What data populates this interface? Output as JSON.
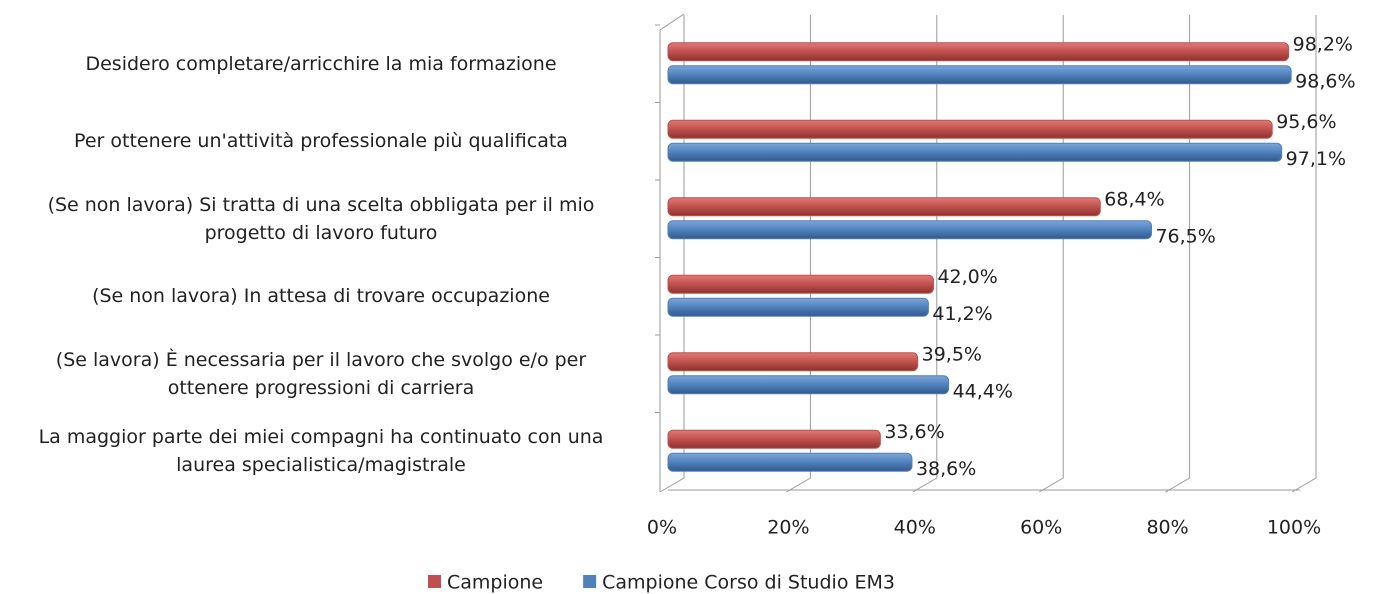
{
  "chart_data": {
    "type": "bar",
    "orientation": "horizontal",
    "categories": [
      "Desidero completare/arricchire la mia formazione",
      "Per ottenere un'attività professionale più qualificata",
      "(Se non lavora) Si tratta di una scelta obbligata per il mio\nprogetto di lavoro futuro",
      "(Se non lavora) In attesa di trovare occupazione",
      "(Se lavora) È necessaria per il lavoro che svolgo e/o per\nottenere progressioni di carriera",
      "La maggior parte dei miei compagni ha continuato con una\nlaurea specialistica/magistrale"
    ],
    "series": [
      {
        "name": "Campione",
        "color": "#c0504d",
        "values": [
          98.2,
          95.6,
          68.4,
          42.0,
          39.5,
          33.6
        ],
        "value_labels": [
          "98,2%",
          "95,6%",
          "68,4%",
          "42,0%",
          "39,5%",
          "33,6%"
        ]
      },
      {
        "name": "Campione Corso di Studio EM3",
        "color": "#4f81bd",
        "values": [
          98.6,
          97.1,
          76.5,
          41.2,
          44.4,
          38.6
        ],
        "value_labels": [
          "98,6%",
          "97,1%",
          "76,5%",
          "41,2%",
          "44,4%",
          "38,6%"
        ]
      }
    ],
    "xlim": [
      0,
      100
    ],
    "xticks": [
      {
        "value": 0,
        "label": "0%"
      },
      {
        "value": 20,
        "label": "20%"
      },
      {
        "value": 40,
        "label": "40%"
      },
      {
        "value": 60,
        "label": "60%"
      },
      {
        "value": 80,
        "label": "80%"
      },
      {
        "value": 100,
        "label": "100%"
      }
    ],
    "grid": true,
    "legend": "bottom"
  }
}
